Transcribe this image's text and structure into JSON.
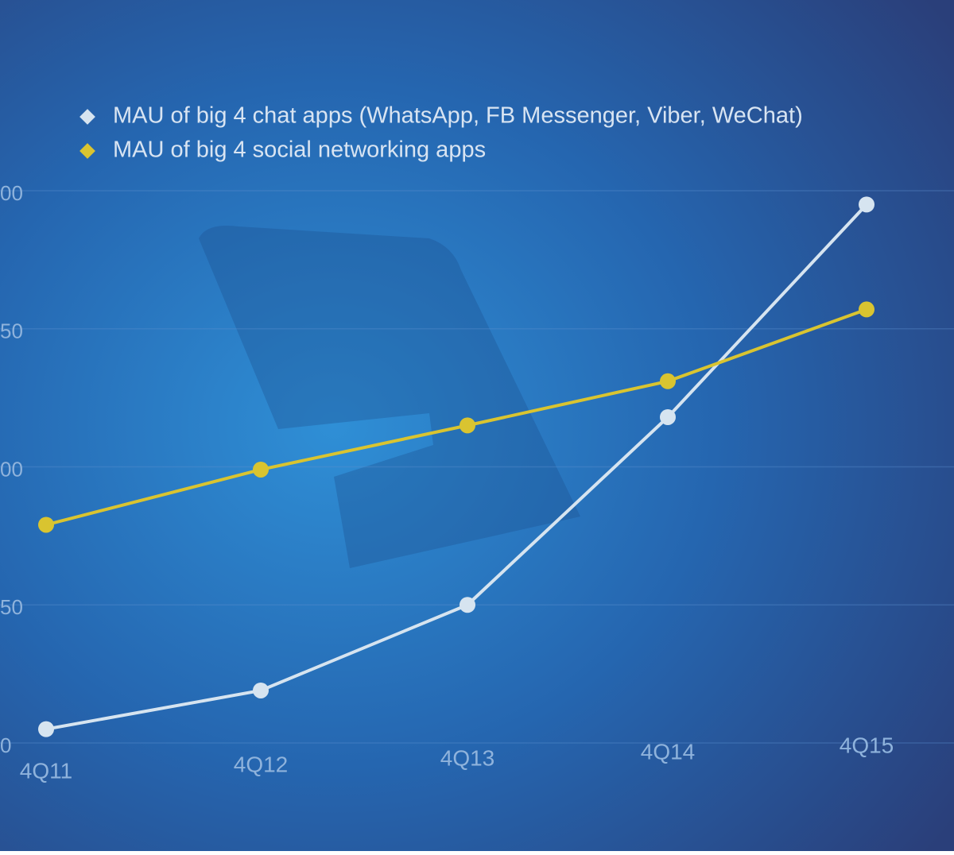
{
  "chart_data": {
    "type": "line",
    "categories": [
      "4Q11",
      "4Q12",
      "4Q13",
      "4Q14",
      "4Q15"
    ],
    "series": [
      {
        "name": "MAU of big 4 chat apps (WhatsApp, FB Messenger, Viber, WeChat)",
        "color": "#d6e4f0",
        "values": [
          5,
          19,
          50,
          118,
          195
        ]
      },
      {
        "name": "MAU of big 4 social networking apps",
        "color": "#d9c430",
        "values": [
          79,
          99,
          115,
          131,
          157
        ]
      }
    ],
    "ylim": [
      0,
      200
    ],
    "yticks": [
      0,
      {
        "value": 50,
        "label": "50"
      },
      {
        "value": 100,
        "label": "00"
      },
      {
        "value": 150,
        "label": "50"
      },
      {
        "value": 200,
        "label": "00"
      }
    ],
    "grid": true
  }
}
